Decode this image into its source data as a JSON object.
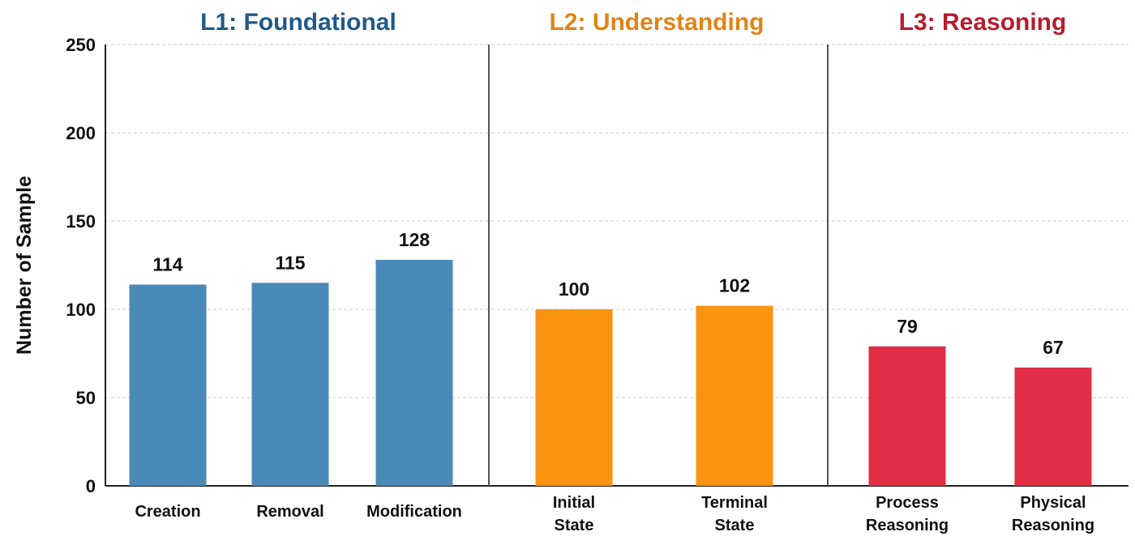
{
  "chart_data": {
    "type": "bar",
    "ylabel": "Number of Sample",
    "ylim": [
      0,
      250
    ],
    "yticks": [
      0,
      50,
      100,
      150,
      200,
      250
    ],
    "grid": true,
    "groups": [
      {
        "title": "L1: Foundational",
        "color": "#4a8ab8",
        "title_color": "#1f5a8a",
        "categories": [
          [
            "Creation"
          ],
          [
            "Removal"
          ],
          [
            "Modification"
          ]
        ],
        "values": [
          114,
          115,
          128
        ]
      },
      {
        "title": "L2: Understanding",
        "color": "#fb9312",
        "title_color": "#e08417",
        "categories": [
          [
            "Initial",
            "State"
          ],
          [
            "Terminal",
            "State"
          ]
        ],
        "values": [
          100,
          102
        ]
      },
      {
        "title": "L3: Reasoning",
        "color": "#e12d45",
        "title_color": "#b71c2e",
        "categories": [
          [
            "Process",
            "Reasoning"
          ],
          [
            "Physical",
            "Reasoning"
          ]
        ],
        "values": [
          79,
          67
        ]
      }
    ]
  }
}
